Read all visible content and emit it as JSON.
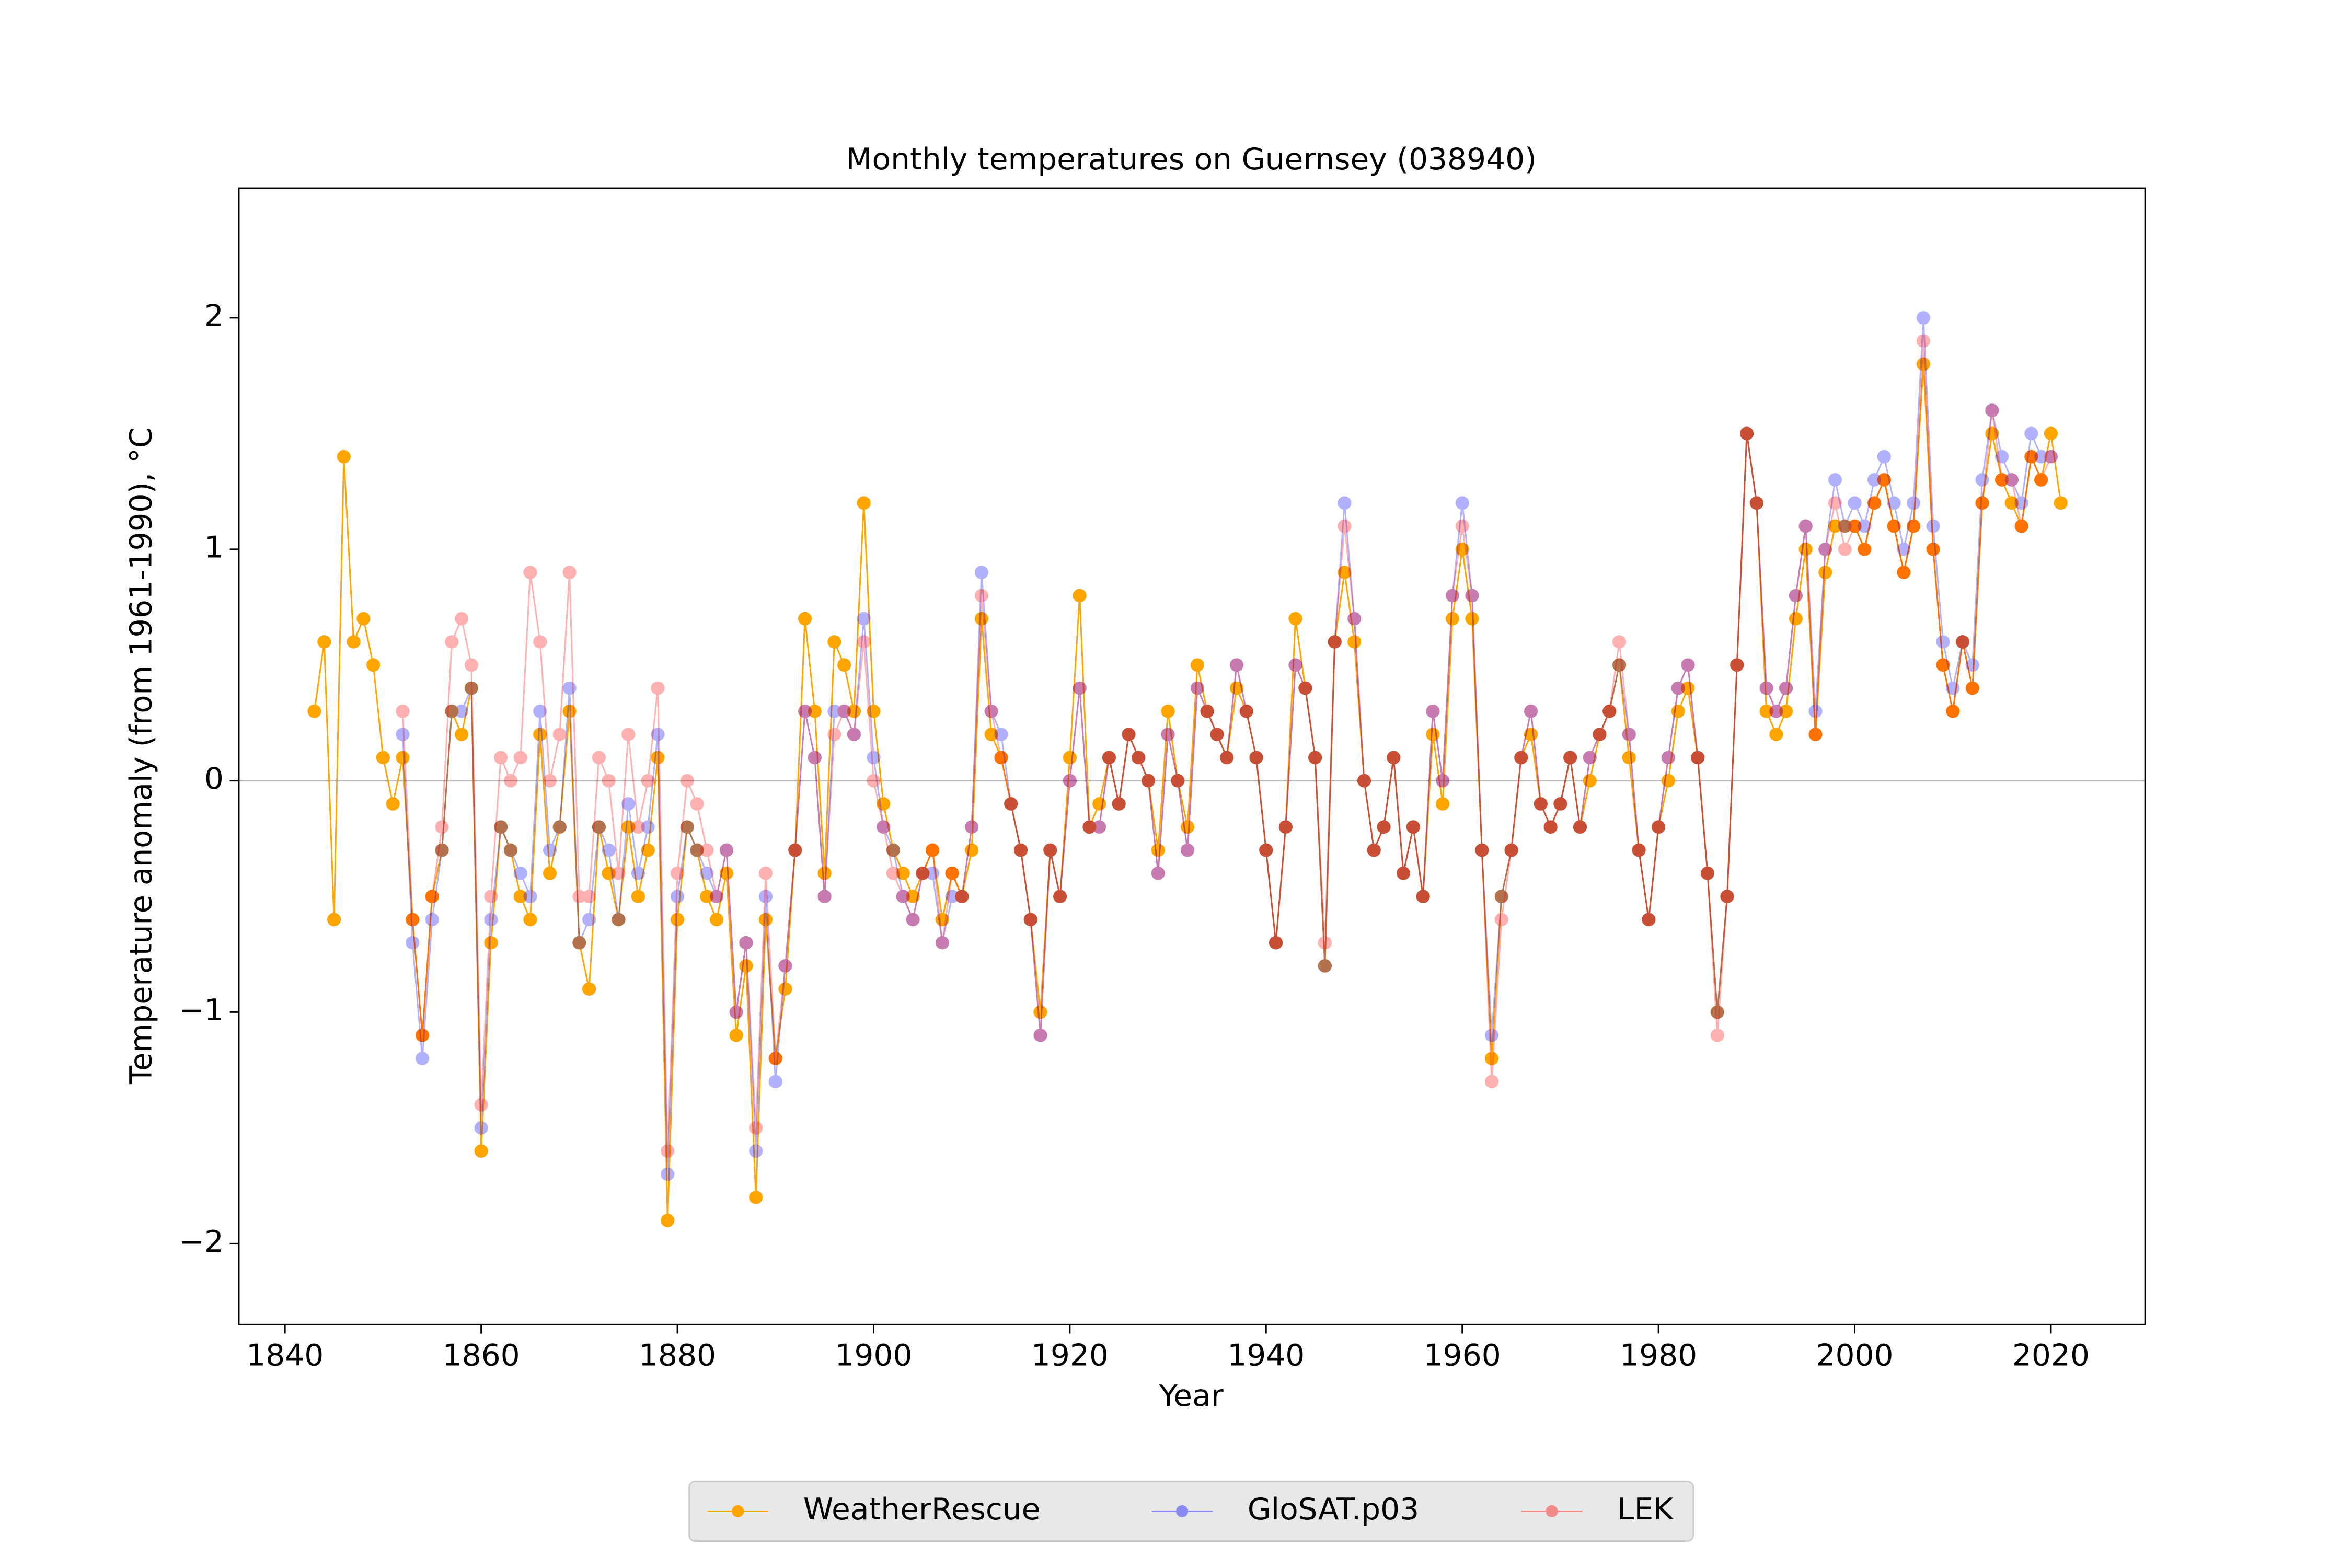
{
  "chart_data": {
    "type": "line",
    "title": "Monthly temperatures on Guernsey (038940)",
    "x_label": "Year",
    "y_label": "Temperature anomaly (from 1961-1990), °C",
    "xlim": [
      1835.3,
      2029.6
    ],
    "ylim": [
      -2.35,
      2.56
    ],
    "xticks": [
      1840,
      1860,
      1880,
      1900,
      1920,
      1940,
      1960,
      1980,
      2000,
      2020
    ],
    "yticks": [
      {
        "value": -2,
        "label": "−2"
      },
      {
        "value": -1,
        "label": "−1"
      },
      0,
      1,
      2
    ],
    "zero_line": true,
    "legend": "lower center",
    "series": [
      {
        "name": "WeatherRescue",
        "color": "#ffa500",
        "opacity": 1,
        "x": [
          1843,
          1844,
          1845,
          1846,
          1847,
          1848,
          1849,
          1850,
          1851,
          1852,
          1853,
          1854,
          1855,
          1856,
          1857,
          1858,
          1859,
          1860,
          1861,
          1862,
          1863,
          1864,
          1865,
          1866,
          1867,
          1868,
          1869,
          1870,
          1871,
          1872,
          1873,
          1874,
          1875,
          1876,
          1877,
          1878,
          1879,
          1880,
          1881,
          1882,
          1883,
          1884,
          1885,
          1886,
          1887,
          1888,
          1889,
          1890,
          1891,
          1892,
          1893,
          1894,
          1895,
          1896,
          1897,
          1898,
          1899,
          1900,
          1901,
          1902,
          1903,
          1904,
          1905,
          1906,
          1907,
          1908,
          1909,
          1910,
          1911,
          1912,
          1913,
          1914,
          1915,
          1916,
          1917,
          1918,
          1919,
          1920,
          1921,
          1922,
          1923,
          1924,
          1925,
          1926,
          1927,
          1928,
          1929,
          1930,
          1931,
          1932,
          1933,
          1934,
          1935,
          1936,
          1937,
          1938,
          1939,
          1940,
          1941,
          1942,
          1943,
          1944,
          1945,
          1946,
          1947,
          1948,
          1949,
          1950,
          1951,
          1952,
          1953,
          1954,
          1955,
          1956,
          1957,
          1958,
          1959,
          1960,
          1961,
          1962,
          1963,
          1964,
          1965,
          1966,
          1967,
          1968,
          1969,
          1970,
          1971,
          1972,
          1973,
          1974,
          1975,
          1976,
          1977,
          1978,
          1979,
          1980,
          1981,
          1982,
          1983,
          1984,
          1985,
          1986,
          1987,
          1988,
          1989,
          1990,
          1991,
          1992,
          1993,
          1994,
          1995,
          1996,
          1997,
          1998,
          1999,
          2000,
          2001,
          2002,
          2003,
          2004,
          2005,
          2006,
          2007,
          2008,
          2009,
          2010,
          2011,
          2012,
          2013,
          2014,
          2015,
          2016,
          2017,
          2018,
          2019,
          2020,
          2021
        ],
        "values": [
          0.3,
          0.6,
          -0.6,
          1.4,
          0.6,
          0.7,
          0.5,
          0.1,
          -0.1,
          0.1,
          -0.6,
          -1.1,
          -0.5,
          -0.3,
          0.3,
          0.2,
          0.4,
          -1.6,
          -0.7,
          -0.2,
          -0.3,
          -0.5,
          -0.6,
          0.2,
          -0.4,
          -0.2,
          0.3,
          -0.7,
          -0.9,
          -0.2,
          -0.4,
          -0.6,
          -0.2,
          -0.5,
          -0.3,
          0.1,
          -1.9,
          -0.6,
          -0.2,
          -0.3,
          -0.5,
          -0.6,
          -0.4,
          -1.1,
          -0.8,
          -1.8,
          -0.6,
          -1.2,
          -0.9,
          -0.3,
          0.7,
          0.3,
          -0.4,
          0.6,
          0.5,
          0.3,
          1.2,
          0.3,
          -0.1,
          -0.3,
          -0.4,
          -0.5,
          -0.4,
          -0.3,
          -0.6,
          -0.4,
          -0.5,
          -0.3,
          0.7,
          0.2,
          0.1,
          -0.1,
          -0.3,
          -0.6,
          -1.0,
          -0.3,
          -0.5,
          0.1,
          0.8,
          -0.2,
          -0.1,
          0.1,
          -0.1,
          0.2,
          0.1,
          0.0,
          -0.3,
          0.3,
          0.0,
          -0.2,
          0.5,
          0.3,
          0.2,
          0.1,
          0.4,
          0.3,
          0.1,
          -0.3,
          -0.7,
          -0.2,
          0.7,
          0.4,
          0.1,
          -0.8,
          0.6,
          0.9,
          0.6,
          0.0,
          -0.3,
          -0.2,
          0.1,
          -0.4,
          -0.2,
          -0.5,
          0.2,
          -0.1,
          0.7,
          1.0,
          0.7,
          -0.3,
          -1.2,
          -0.5,
          -0.3,
          0.1,
          0.2,
          -0.1,
          -0.2,
          -0.1,
          0.1,
          -0.2,
          0.0,
          0.2,
          0.3,
          0.5,
          0.1,
          -0.3,
          -0.6,
          -0.2,
          0.0,
          0.3,
          0.4,
          0.1,
          -0.4,
          -1.0,
          -0.5,
          0.5,
          1.5,
          1.2,
          0.3,
          0.2,
          0.3,
          0.7,
          1.0,
          0.2,
          0.9,
          1.1,
          1.1,
          1.1,
          1.0,
          1.2,
          1.3,
          1.1,
          0.9,
          1.1,
          1.8,
          1.0,
          0.5,
          0.3,
          0.6,
          0.4,
          1.2,
          1.5,
          1.3,
          1.2,
          1.1,
          1.4,
          1.3,
          1.5,
          1.2
        ]
      },
      {
        "name": "GloSAT.p03",
        "color": "#0000ff",
        "opacity": 0.3,
        "x": [
          1852,
          1853,
          1854,
          1855,
          1856,
          1857,
          1858,
          1859,
          1860,
          1861,
          1862,
          1863,
          1864,
          1865,
          1866,
          1867,
          1868,
          1869,
          1870,
          1871,
          1872,
          1873,
          1874,
          1875,
          1876,
          1877,
          1878,
          1879,
          1880,
          1881,
          1882,
          1883,
          1884,
          1885,
          1886,
          1887,
          1888,
          1889,
          1890,
          1891,
          1892,
          1893,
          1894,
          1895,
          1896,
          1897,
          1898,
          1899,
          1900,
          1901,
          1902,
          1903,
          1904,
          1905,
          1906,
          1907,
          1908,
          1909,
          1910,
          1911,
          1912,
          1913,
          1914,
          1915,
          1916,
          1917,
          1918,
          1919,
          1920,
          1921,
          1922,
          1923,
          1924,
          1925,
          1926,
          1927,
          1928,
          1929,
          1930,
          1931,
          1932,
          1933,
          1934,
          1935,
          1936,
          1937,
          1938,
          1939,
          1940,
          1941,
          1942,
          1943,
          1944,
          1945,
          1946,
          1947,
          1948,
          1949,
          1950,
          1951,
          1952,
          1953,
          1954,
          1955,
          1956,
          1957,
          1958,
          1959,
          1960,
          1961,
          1962,
          1963,
          1964,
          1965,
          1966,
          1967,
          1968,
          1969,
          1970,
          1971,
          1972,
          1973,
          1974,
          1975,
          1976,
          1977,
          1978,
          1979,
          1980,
          1981,
          1982,
          1983,
          1984,
          1985,
          1986,
          1987,
          1988,
          1989,
          1990,
          1991,
          1992,
          1993,
          1994,
          1995,
          1996,
          1997,
          1998,
          1999,
          2000,
          2001,
          2002,
          2003,
          2004,
          2005,
          2006,
          2007,
          2008,
          2009,
          2010,
          2011,
          2012,
          2013,
          2014,
          2015,
          2016,
          2017,
          2018,
          2019,
          2020
        ],
        "values": [
          0.2,
          -0.7,
          -1.2,
          -0.6,
          -0.3,
          0.3,
          0.3,
          0.4,
          -1.5,
          -0.6,
          -0.2,
          -0.3,
          -0.4,
          -0.5,
          0.3,
          -0.3,
          -0.2,
          0.4,
          -0.7,
          -0.6,
          -0.2,
          -0.3,
          -0.6,
          -0.1,
          -0.4,
          -0.2,
          0.2,
          -1.7,
          -0.5,
          -0.2,
          -0.3,
          -0.4,
          -0.5,
          -0.3,
          -1.0,
          -0.7,
          -1.6,
          -0.5,
          -1.3,
          -0.8,
          -0.3,
          0.3,
          0.1,
          -0.5,
          0.3,
          0.3,
          0.2,
          0.7,
          0.1,
          -0.2,
          -0.3,
          -0.5,
          -0.6,
          -0.4,
          -0.4,
          -0.7,
          -0.5,
          -0.5,
          -0.2,
          0.9,
          0.3,
          0.2,
          -0.1,
          -0.3,
          -0.6,
          -1.1,
          -0.3,
          -0.5,
          0.0,
          0.4,
          -0.2,
          -0.2,
          0.1,
          -0.1,
          0.2,
          0.1,
          0.0,
          -0.4,
          0.2,
          0.0,
          -0.3,
          0.4,
          0.3,
          0.2,
          0.1,
          0.5,
          0.3,
          0.1,
          -0.3,
          -0.7,
          -0.2,
          0.5,
          0.4,
          0.1,
          -0.8,
          0.6,
          1.2,
          0.7,
          0.0,
          -0.3,
          -0.2,
          0.1,
          -0.4,
          -0.2,
          -0.5,
          0.3,
          0.0,
          0.8,
          1.2,
          0.8,
          -0.3,
          -1.1,
          -0.5,
          -0.3,
          0.1,
          0.3,
          -0.1,
          -0.2,
          -0.1,
          0.1,
          -0.2,
          0.1,
          0.2,
          0.3,
          0.5,
          0.2,
          -0.3,
          -0.6,
          -0.2,
          0.1,
          0.4,
          0.5,
          0.1,
          -0.4,
          -1.0,
          -0.5,
          0.5,
          1.5,
          1.2,
          0.4,
          0.3,
          0.4,
          0.8,
          1.1,
          0.3,
          1.0,
          1.3,
          1.1,
          1.2,
          1.1,
          1.3,
          1.4,
          1.2,
          1.0,
          1.2,
          2.0,
          1.1,
          0.6,
          0.4,
          0.6,
          0.5,
          1.3,
          1.6,
          1.4,
          1.3,
          1.2,
          1.5,
          1.4,
          1.4
        ]
      },
      {
        "name": "LEK",
        "color": "#ff0000",
        "opacity": 0.3,
        "x": [
          1852,
          1853,
          1854,
          1855,
          1856,
          1857,
          1858,
          1859,
          1860,
          1861,
          1862,
          1863,
          1864,
          1865,
          1866,
          1867,
          1868,
          1869,
          1870,
          1871,
          1872,
          1873,
          1874,
          1875,
          1876,
          1877,
          1878,
          1879,
          1880,
          1881,
          1882,
          1883,
          1884,
          1885,
          1886,
          1887,
          1888,
          1889,
          1890,
          1891,
          1892,
          1893,
          1894,
          1895,
          1896,
          1897,
          1898,
          1899,
          1900,
          1901,
          1902,
          1903,
          1904,
          1905,
          1906,
          1907,
          1908,
          1909,
          1910,
          1911,
          1912,
          1913,
          1914,
          1915,
          1916,
          1917,
          1918,
          1919,
          1920,
          1921,
          1922,
          1923,
          1924,
          1925,
          1926,
          1927,
          1928,
          1929,
          1930,
          1931,
          1932,
          1933,
          1934,
          1935,
          1936,
          1937,
          1938,
          1939,
          1940,
          1941,
          1942,
          1943,
          1944,
          1945,
          1946,
          1947,
          1948,
          1949,
          1950,
          1951,
          1952,
          1953,
          1954,
          1955,
          1956,
          1957,
          1958,
          1959,
          1960,
          1961,
          1962,
          1963,
          1964,
          1965,
          1966,
          1967,
          1968,
          1969,
          1970,
          1971,
          1972,
          1973,
          1974,
          1975,
          1976,
          1977,
          1978,
          1979,
          1980,
          1981,
          1982,
          1983,
          1984,
          1985,
          1986,
          1987,
          1988,
          1989,
          1990,
          1991,
          1992,
          1993,
          1994,
          1995,
          1996,
          1997,
          1998,
          1999,
          2000,
          2001,
          2002,
          2003,
          2004,
          2005,
          2006,
          2007,
          2008,
          2009,
          2010,
          2011,
          2012,
          2013,
          2014,
          2015,
          2016,
          2017,
          2018,
          2019,
          2020
        ],
        "values": [
          0.3,
          -0.6,
          -1.1,
          -0.5,
          -0.2,
          0.6,
          0.7,
          0.5,
          -1.4,
          -0.5,
          0.1,
          0.0,
          0.1,
          0.9,
          0.6,
          0.0,
          0.2,
          0.9,
          -0.5,
          -0.5,
          0.1,
          0.0,
          -0.4,
          0.2,
          -0.2,
          0.0,
          0.4,
          -1.6,
          -0.4,
          0.0,
          -0.1,
          -0.3,
          -0.5,
          -0.3,
          -1.0,
          -0.7,
          -1.5,
          -0.4,
          -1.2,
          -0.8,
          -0.3,
          0.3,
          0.1,
          -0.5,
          0.2,
          0.3,
          0.2,
          0.6,
          0.0,
          -0.2,
          -0.4,
          -0.5,
          -0.6,
          -0.4,
          -0.3,
          -0.7,
          -0.4,
          -0.5,
          -0.2,
          0.8,
          0.3,
          0.1,
          -0.1,
          -0.3,
          -0.6,
          -1.1,
          -0.3,
          -0.5,
          0.0,
          0.4,
          -0.2,
          -0.2,
          0.1,
          -0.1,
          0.2,
          0.1,
          0.0,
          -0.4,
          0.2,
          0.0,
          -0.3,
          0.4,
          0.3,
          0.2,
          0.1,
          0.5,
          0.3,
          0.1,
          -0.3,
          -0.7,
          -0.2,
          0.5,
          0.4,
          0.1,
          -0.7,
          0.6,
          1.1,
          0.7,
          0.0,
          -0.3,
          -0.2,
          0.1,
          -0.4,
          -0.2,
          -0.5,
          0.3,
          0.0,
          0.8,
          1.1,
          0.8,
          -0.3,
          -1.3,
          -0.6,
          -0.3,
          0.1,
          0.3,
          -0.1,
          -0.2,
          -0.1,
          0.1,
          -0.2,
          0.1,
          0.2,
          0.3,
          0.6,
          0.2,
          -0.3,
          -0.6,
          -0.2,
          0.1,
          0.4,
          0.5,
          0.1,
          -0.4,
          -1.1,
          -0.5,
          0.5,
          1.5,
          1.2,
          0.4,
          0.3,
          0.4,
          0.8,
          1.1,
          0.2,
          1.0,
          1.2,
          1.0,
          1.1,
          1.0,
          1.2,
          1.3,
          1.1,
          0.9,
          1.1,
          1.9,
          1.0,
          0.5,
          0.3,
          0.6,
          0.4,
          1.2,
          1.6,
          1.3,
          1.3,
          1.1,
          1.4,
          1.3,
          1.4
        ]
      }
    ]
  }
}
